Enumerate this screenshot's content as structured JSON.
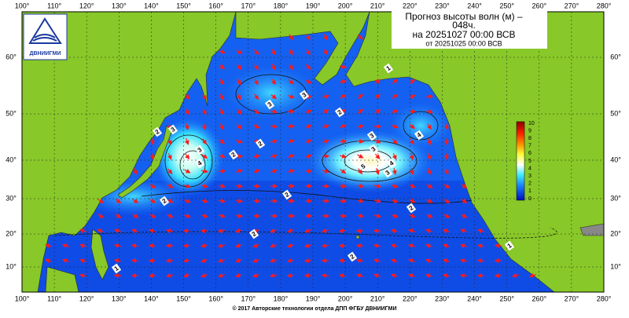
{
  "logo": {
    "text": "ДВНИИГМИ"
  },
  "title": {
    "lines": [
      "Прогноз высоты волн (м) –",
      "048ч.",
      "на 20251027 00:00 ВСВ",
      "от 20251025 00:00 ВСВ"
    ]
  },
  "lon_labels": [
    "100°",
    "110°",
    "120°",
    "130°",
    "140°",
    "150°",
    "160°",
    "170°",
    "180°",
    "190°",
    "200°",
    "210°",
    "220°",
    "230°",
    "240°",
    "250°",
    "260°",
    "270°",
    "280°"
  ],
  "lat_labels": [
    "60°",
    "50°",
    "40°",
    "30°",
    "20°",
    "10°"
  ],
  "colorbar": {
    "labels": [
      "10",
      "9",
      "8",
      "7",
      "6",
      "5",
      "4",
      "3",
      "2",
      "1",
      "0"
    ]
  },
  "contour_labels": [
    "1",
    "3",
    "3",
    "2",
    "3",
    "2",
    "2",
    "2",
    "3",
    "4",
    "3",
    "4",
    "3",
    "5",
    "4",
    "3",
    "2",
    "2",
    "2",
    "2",
    "2",
    "1",
    "1"
  ],
  "footer": "© 2017 Авторские технологии отдела ДПП ФГБУ ДВНИИГМИ"
}
